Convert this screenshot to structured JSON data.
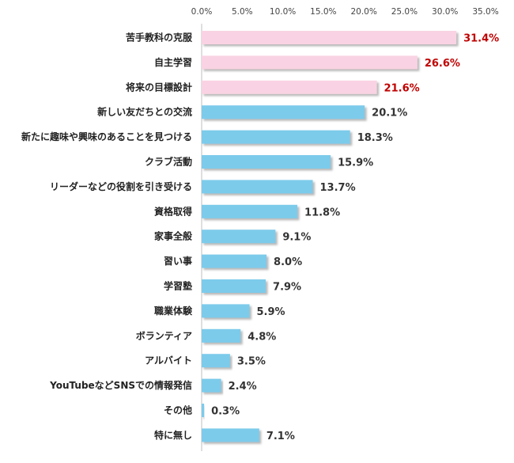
{
  "chart_data": {
    "type": "bar",
    "orientation": "horizontal",
    "categories": [
      "苦手教科の克服",
      "自主学習",
      "将来の目標設計",
      "新しい友だちとの交流",
      "新たに趣味や興味のあることを見つける",
      "クラブ活動",
      "リーダーなどの役割を引き受ける",
      "資格取得",
      "家事全般",
      "習い事",
      "学習塾",
      "職業体験",
      "ボランティア",
      "アルバイト",
      "YouTubeなどSNSでの情報発信",
      "その他",
      "特に無し"
    ],
    "values": [
      31.4,
      26.6,
      21.6,
      20.1,
      18.3,
      15.9,
      13.7,
      11.8,
      9.1,
      8.0,
      7.9,
      5.9,
      4.8,
      3.5,
      2.4,
      0.3,
      7.1
    ],
    "value_labels": [
      "31.4%",
      "26.6%",
      "21.6%",
      "20.1%",
      "18.3%",
      "15.9%",
      "13.7%",
      "11.8%",
      "9.1%",
      "8.0%",
      "7.9%",
      "5.9%",
      "4.8%",
      "3.5%",
      "2.4%",
      "0.3%",
      "7.1%"
    ],
    "highlight_count": 3,
    "xlim": [
      0,
      35
    ],
    "xticks": [
      0,
      5,
      10,
      15,
      20,
      25,
      30,
      35
    ],
    "xtick_labels": [
      "0.0%",
      "5.0%",
      "10.0%",
      "15.0%",
      "20.0%",
      "25.0%",
      "30.0%",
      "35.0%"
    ],
    "tick_position": "top",
    "grid": false,
    "legend": "none",
    "title": "",
    "xlabel": "",
    "ylabel": "",
    "colors": {
      "highlight_bar": "#f9d3e3",
      "bar": "#7ccbeb",
      "highlight_label": "#c00000",
      "label": "#333333",
      "shadow": "#9a9a9a"
    }
  }
}
